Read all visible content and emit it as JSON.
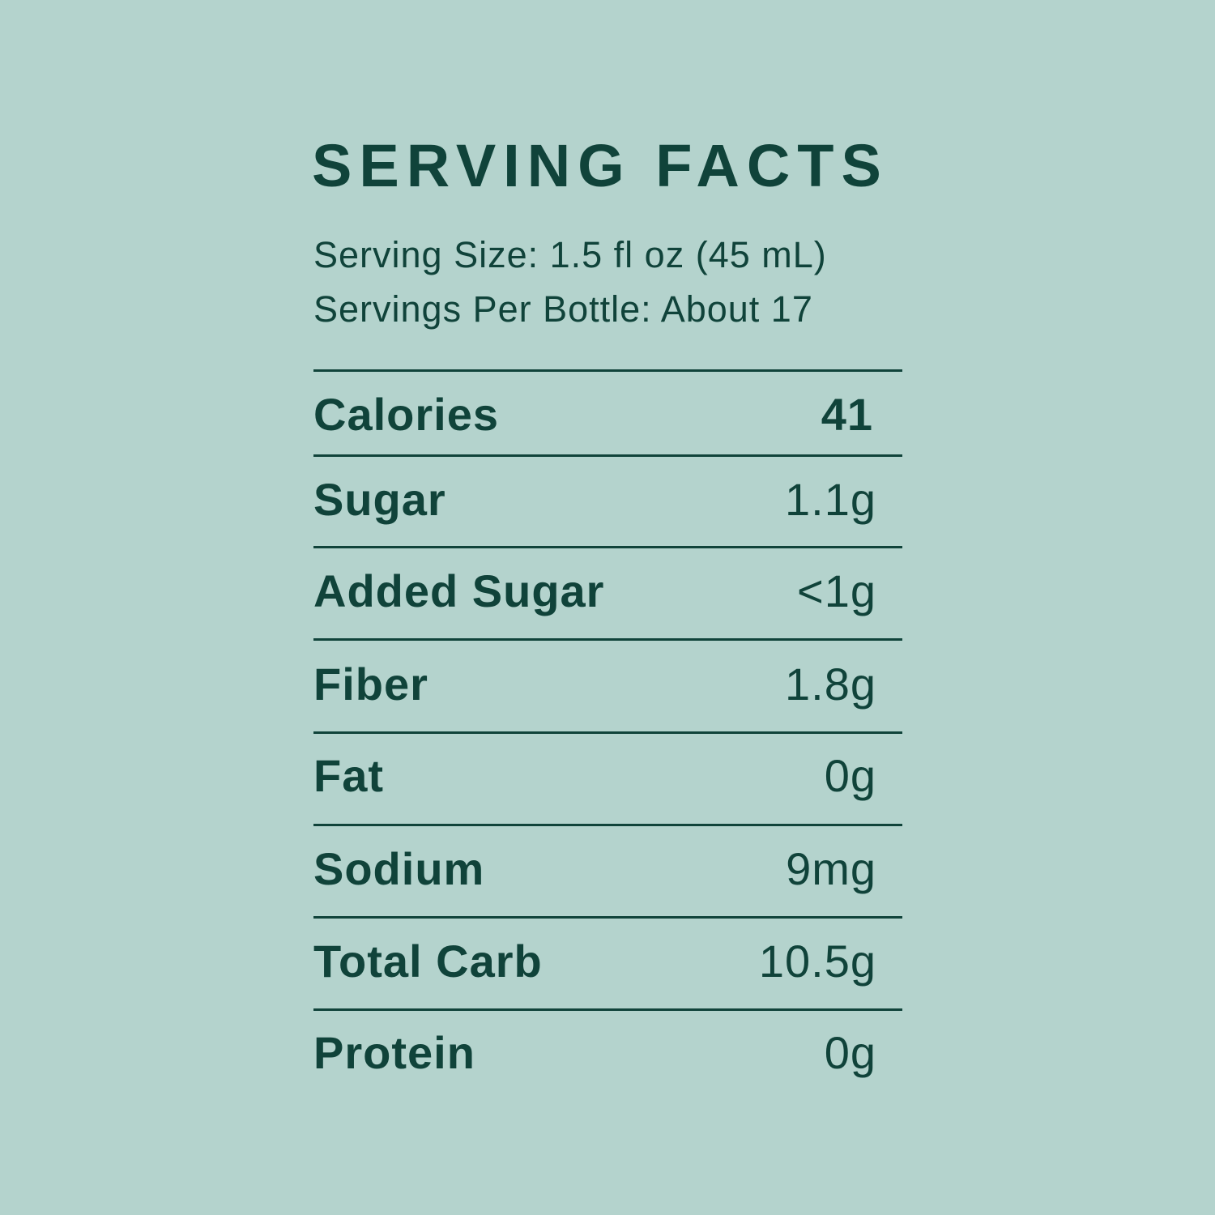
{
  "title": "SERVING FACTS",
  "serving_size": "Serving Size: 1.5 fl oz (45 mL)",
  "servings_per": "Servings Per Bottle: About 17",
  "rows": [
    {
      "label": "Calories",
      "value": "41"
    },
    {
      "label": "Sugar",
      "value": "1.1g"
    },
    {
      "label": "Added Sugar",
      "value": "<1g"
    },
    {
      "label": "Fiber",
      "value": "1.8g"
    },
    {
      "label": "Fat",
      "value": "0g"
    },
    {
      "label": "Sodium",
      "value": "9mg"
    },
    {
      "label": "Total Carb",
      "value": "10.5g"
    },
    {
      "label": "Protein",
      "value": "0g"
    }
  ],
  "colors": {
    "background": "#b4d3cd",
    "text": "#10433a"
  }
}
